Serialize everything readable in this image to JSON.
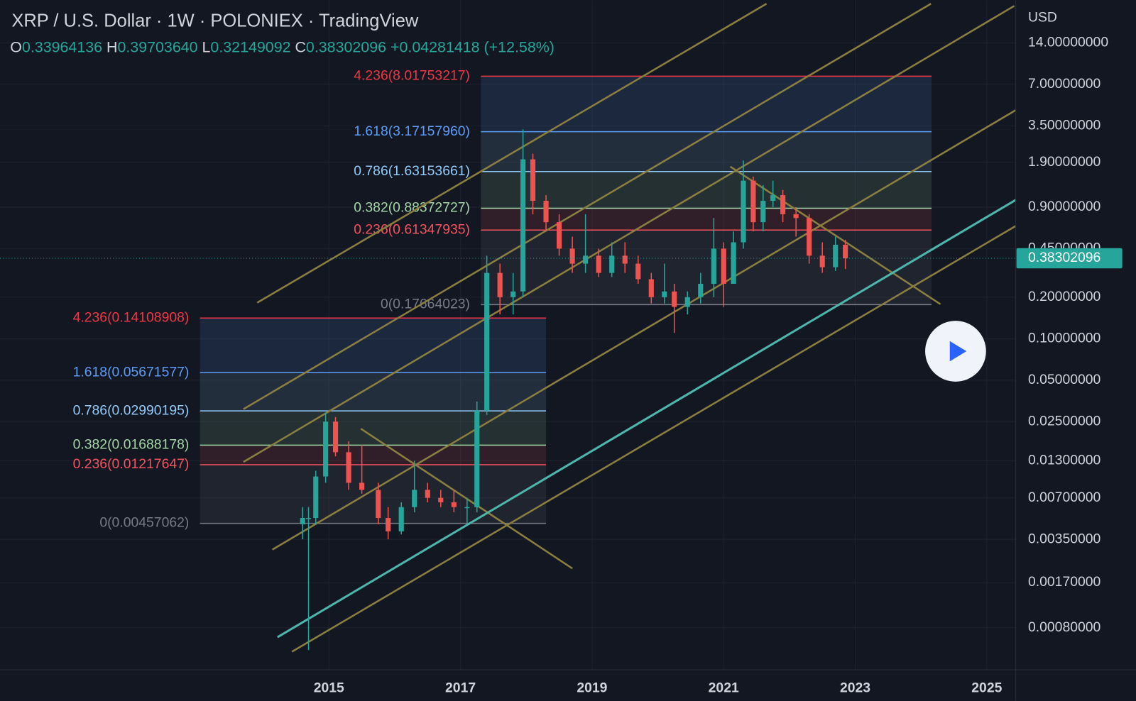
{
  "chart_data": {
    "type": "candlestick",
    "title": "XRP / U.S. Dollar · 1W · POLONIEX · TradingView",
    "ohlc_header": {
      "o_label": "O",
      "o": "0.33964136",
      "h_label": "H",
      "h": "0.39703640",
      "l_label": "L",
      "l": "0.32149092",
      "c_label": "C",
      "c": "0.38302096",
      "change": "+0.04281418",
      "change_pct": "(+12.58%)"
    },
    "currency": "USD",
    "log_scale": true,
    "grid": true,
    "up_color": "#26a69a",
    "down_color": "#ef5350",
    "xlim": [
      2010.0,
      2025.44
    ],
    "xticks": [
      2015,
      2017,
      2019,
      2021,
      2023,
      2025
    ],
    "ylim": [
      0.000396,
      28.6
    ],
    "yticks": [
      {
        "value": 14,
        "label": "14.00000000"
      },
      {
        "value": 7,
        "label": "7.00000000"
      },
      {
        "value": 3.5,
        "label": "3.50000000"
      },
      {
        "value": 1.9,
        "label": "1.90000000"
      },
      {
        "value": 0.9,
        "label": "0.90000000"
      },
      {
        "value": 0.45,
        "label": "0.45000000"
      },
      {
        "value": 0.2,
        "label": "0.20000000"
      },
      {
        "value": 0.1,
        "label": "0.10000000"
      },
      {
        "value": 0.05,
        "label": "0.05000000"
      },
      {
        "value": 0.025,
        "label": "0.02500000"
      },
      {
        "value": 0.013,
        "label": "0.01300000"
      },
      {
        "value": 0.007,
        "label": "0.00700000"
      },
      {
        "value": 0.0035,
        "label": "0.00350000"
      },
      {
        "value": 0.0017,
        "label": "0.00170000"
      },
      {
        "value": 0.0008,
        "label": "0.00080000"
      }
    ],
    "last_price": 0.38302096,
    "x": [
      2014.6,
      2014.69,
      2014.8,
      2014.95,
      2015.1,
      2015.3,
      2015.5,
      2015.75,
      2015.9,
      2016.1,
      2016.3,
      2016.5,
      2016.7,
      2016.9,
      2017.1,
      2017.25,
      2017.4,
      2017.6,
      2017.8,
      2017.95,
      2018.1,
      2018.3,
      2018.5,
      2018.7,
      2018.9,
      2019.1,
      2019.3,
      2019.5,
      2019.7,
      2019.9,
      2020.1,
      2020.25,
      2020.45,
      2020.65,
      2020.85,
      2021.0,
      2021.15,
      2021.3,
      2021.45,
      2021.6,
      2021.75,
      2021.9,
      2022.1,
      2022.3,
      2022.5,
      2022.7,
      2022.85
    ],
    "open": [
      0.0045,
      0.005,
      0.005,
      0.01,
      0.025,
      0.015,
      0.009,
      0.008,
      0.005,
      0.004,
      0.006,
      0.008,
      0.007,
      0.0065,
      0.006,
      0.006,
      0.03,
      0.3,
      0.2,
      0.22,
      2.0,
      1.0,
      0.7,
      0.45,
      0.35,
      0.4,
      0.3,
      0.4,
      0.35,
      0.27,
      0.2,
      0.22,
      0.17,
      0.2,
      0.25,
      0.45,
      0.25,
      0.5,
      1.4,
      0.7,
      1.0,
      1.1,
      0.8,
      0.75,
      0.4,
      0.33,
      0.48
    ],
    "high": [
      0.006,
      0.006,
      0.011,
      0.029,
      0.027,
      0.018,
      0.017,
      0.009,
      0.006,
      0.0065,
      0.013,
      0.009,
      0.008,
      0.008,
      0.007,
      0.035,
      0.4,
      0.35,
      0.3,
      3.3,
      2.2,
      1.1,
      0.8,
      0.55,
      0.8,
      0.45,
      0.5,
      0.5,
      0.4,
      0.3,
      0.35,
      0.25,
      0.22,
      0.3,
      0.75,
      0.5,
      0.6,
      1.96,
      1.5,
      1.3,
      1.4,
      1.2,
      0.9,
      0.8,
      0.5,
      0.55,
      0.52
    ],
    "low": [
      0.0035,
      0.00055,
      0.0045,
      0.009,
      0.014,
      0.008,
      0.0075,
      0.0045,
      0.0035,
      0.0038,
      0.0055,
      0.0065,
      0.006,
      0.0055,
      0.0045,
      0.0055,
      0.028,
      0.15,
      0.15,
      0.2,
      0.8,
      0.6,
      0.4,
      0.3,
      0.3,
      0.28,
      0.28,
      0.3,
      0.25,
      0.18,
      0.18,
      0.11,
      0.15,
      0.18,
      0.2,
      0.17,
      0.25,
      0.45,
      0.6,
      0.6,
      0.9,
      0.7,
      0.55,
      0.35,
      0.3,
      0.31,
      0.32
    ],
    "close": [
      0.005,
      0.005,
      0.01,
      0.025,
      0.015,
      0.009,
      0.008,
      0.005,
      0.004,
      0.006,
      0.008,
      0.007,
      0.0065,
      0.006,
      0.006,
      0.03,
      0.3,
      0.2,
      0.22,
      2.0,
      1.0,
      0.7,
      0.45,
      0.35,
      0.4,
      0.3,
      0.4,
      0.35,
      0.27,
      0.2,
      0.22,
      0.17,
      0.2,
      0.25,
      0.45,
      0.25,
      0.5,
      1.4,
      0.7,
      1.0,
      1.1,
      0.8,
      0.75,
      0.4,
      0.33,
      0.48,
      0.38302096
    ],
    "fib_sets": [
      {
        "x_range": [
          2013.04,
          2018.3
        ],
        "levels": [
          {
            "value": 0.14108908,
            "label": "4.236(0.14108908)",
            "color": "#f23645"
          },
          {
            "value": 0.05671577,
            "label": "1.618(0.05671577)",
            "color": "#5b9cf6"
          },
          {
            "value": 0.02990195,
            "label": "0.786(0.02990195)",
            "color": "#90caf9"
          },
          {
            "value": 0.01688178,
            "label": "0.382(0.01688178)",
            "color": "#a5d6a7"
          },
          {
            "value": 0.01217647,
            "label": "0.236(0.01217647)",
            "color": "#f7525f"
          },
          {
            "value": 0.00457062,
            "label": "0(0.00457062)",
            "color": "#787b86"
          }
        ]
      },
      {
        "x_range": [
          2017.31,
          2024.16
        ],
        "levels": [
          {
            "value": 8.01753217,
            "label": "4.236(8.01753217)",
            "color": "#f23645"
          },
          {
            "value": 3.1715796,
            "label": "1.618(3.17157960)",
            "color": "#5b9cf6"
          },
          {
            "value": 1.63153661,
            "label": "0.786(1.63153661)",
            "color": "#90caf9"
          },
          {
            "value": 0.88372727,
            "label": "0.382(0.88372727)",
            "color": "#a5d6a7"
          },
          {
            "value": 0.61347935,
            "label": "0.236(0.61347935)",
            "color": "#f7525f"
          },
          {
            "value": 0.17664023,
            "label": "0(0.17664023)",
            "color": "#787b86"
          }
        ]
      }
    ]
  }
}
